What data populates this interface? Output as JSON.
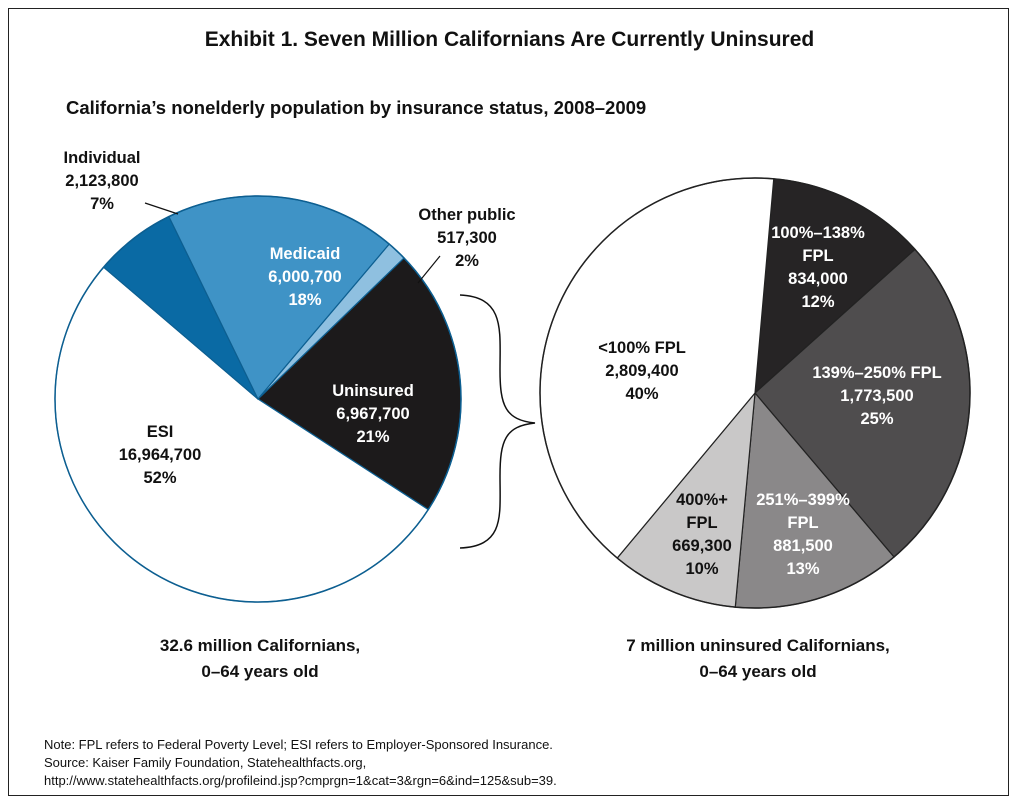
{
  "title": "Exhibit 1. Seven Million Californians Are Currently Uninsured",
  "subtitle": "California’s nonelderly population by insurance status, 2008–2009",
  "chart_data": [
    {
      "type": "pie",
      "caption": [
        "32.6 million Californians,",
        "0–64 years old"
      ],
      "slices": [
        {
          "name": "Uninsured",
          "value": 6967700,
          "value_label": "6,967,700",
          "percent_label": "21%",
          "color": "#1c1a1b",
          "text_color": "#ffffff"
        },
        {
          "name": "ESI",
          "value": 16964700,
          "value_label": "16,964,700",
          "percent_label": "52%",
          "color": "#ffffff",
          "text_color": "#111111"
        },
        {
          "name": "Individual",
          "value": 2123800,
          "value_label": "2,123,800",
          "percent_label": "7%",
          "color": "#0a6aa4",
          "text_color": "#111111"
        },
        {
          "name": "Medicaid",
          "value": 6000700,
          "value_label": "6,000,700",
          "percent_label": "18%",
          "color": "#3f93c6",
          "text_color": "#ffffff"
        },
        {
          "name": "Other public",
          "value": 517300,
          "value_label": "517,300",
          "percent_label": "2%",
          "color": "#8fc0e0",
          "text_color": "#111111"
        }
      ]
    },
    {
      "type": "pie",
      "caption": [
        "7 million uninsured Californians,",
        "0–64 years old"
      ],
      "slices": [
        {
          "name": "100%–138% FPL",
          "value": 834000,
          "value_label": "834,000",
          "percent_label": "12%",
          "color": "#262425",
          "text_color": "#ffffff"
        },
        {
          "name": "139%–250% FPL",
          "value": 1773500,
          "value_label": "1,773,500",
          "percent_label": "25%",
          "color": "#4f4d4e",
          "text_color": "#ffffff"
        },
        {
          "name": "251%–399% FPL",
          "value": 881500,
          "value_label": "881,500",
          "percent_label": "13%",
          "color": "#8a8889",
          "text_color": "#ffffff"
        },
        {
          "name": "400%+ FPL",
          "value": 669300,
          "value_label": "669,300",
          "percent_label": "10%",
          "color": "#c9c8c8",
          "text_color": "#111111"
        },
        {
          "name": "<100% FPL",
          "value": 2809400,
          "value_label": "2,809,400",
          "percent_label": "40%",
          "color": "#ffffff",
          "text_color": "#111111"
        }
      ]
    }
  ],
  "notes": [
    "Note: FPL refers to Federal Poverty Level; ESI refers to Employer-Sponsored Insurance.",
    "Source: Kaiser Family Foundation, Statehealthfacts.org,",
    "http://www.statehealthfacts.org/profileind.jsp?cmprgn=1&cat=3&rgn=6&ind=125&sub=39."
  ]
}
